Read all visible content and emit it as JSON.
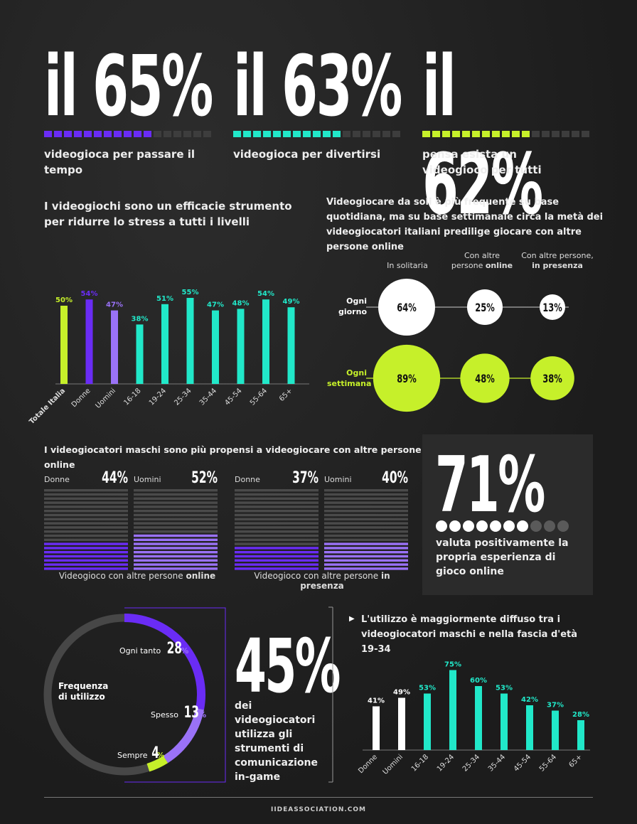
{
  "top_stats": [
    {
      "value": "il 65%",
      "caption": "videogioca per passare il tempo",
      "filled": 11,
      "color": "#6a2cf5"
    },
    {
      "value": "il 63%",
      "caption": "videogioca per divertirsi",
      "filled": 11,
      "color": "#21e8c9"
    },
    {
      "value": "il 62%",
      "caption": "pensa esista un videogioco per tutti",
      "filled": 11,
      "color": "#c6f02a"
    }
  ],
  "stress": {
    "heading": "I videogiochi sono un efficacie strumento per ridurre lo stress a tutti i livelli"
  },
  "solo": {
    "heading": "Videogiocare da soli è più frequente su base quotidiana, ma su base settimanale circa la metà dei videogiocatori italiani predilige giocare con altre persone online",
    "col1": "In solitaria",
    "col2a": "Con altre",
    "col2b": "persone ",
    "col2c": "online",
    "col3a": "Con altre persone,",
    "col3b": "in presenza",
    "row1": "Ogni giorno",
    "row2": "Ogni settimana"
  },
  "males": {
    "heading": "I videogiocatori maschi sono più propensi a videogiocare con altre persone online",
    "online_caption_a": "Videogioco con altre persone ",
    "online_caption_b": "online",
    "presence_caption_a": "Videogioco con altre persone ",
    "presence_caption_b": "in presenza",
    "donne": "Donne",
    "uomini": "Uomini"
  },
  "panel71": {
    "value": "71%",
    "caption": "valuta positivamente la propria esperienza di gioco online"
  },
  "freq": {
    "label": "Frequenza di utilizzo",
    "items": [
      {
        "name": "Ogni tanto",
        "value": "28",
        "pct": "%"
      },
      {
        "name": "Spesso",
        "value": "13",
        "pct": "%"
      },
      {
        "name": "Sempre",
        "value": "4",
        "pct": "%"
      }
    ]
  },
  "comm": {
    "value": "45%",
    "caption": "dei videogiocatori utilizza gli strumenti di comunicazione in-game"
  },
  "usage": {
    "heading": "L'utilizzo è maggiormente diffuso tra i videogiocatori maschi e nella fascia d'età 19-34"
  },
  "footer": "IIDEASSOCIATION.COM",
  "chart_data": [
    {
      "type": "bar",
      "categories": [
        "Totale Italia",
        "Donne",
        "Uomini",
        "16-18",
        "19-24",
        "25-34",
        "35-44",
        "45-54",
        "55-64",
        "65+"
      ],
      "values": [
        50,
        54,
        47,
        38,
        51,
        55,
        47,
        48,
        54,
        49
      ],
      "labels": [
        "50%",
        "54%",
        "47%",
        "38%",
        "51%",
        "55%",
        "47%",
        "48%",
        "54%",
        "49%"
      ],
      "colors": [
        "#c6f02a",
        "#6a2cf5",
        "#9a72f7",
        "#21e8c9",
        "#21e8c9",
        "#21e8c9",
        "#21e8c9",
        "#21e8c9",
        "#21e8c9",
        "#21e8c9"
      ]
    },
    {
      "type": "bubble",
      "columns": [
        "In solitaria",
        "Con altre persone online",
        "Con altre persone, in presenza"
      ],
      "rows": [
        "Ogni giorno",
        "Ogni settimana"
      ],
      "values": [
        [
          64,
          25,
          13
        ],
        [
          89,
          48,
          38
        ]
      ],
      "labels": [
        [
          "64%",
          "25%",
          "13%"
        ],
        [
          "89%",
          "48%",
          "38%"
        ]
      ]
    },
    {
      "type": "bar",
      "title": "Videogioco con altre persone online",
      "categories": [
        "Donne",
        "Uomini"
      ],
      "values": [
        44,
        52
      ],
      "labels": [
        "44%",
        "52%"
      ]
    },
    {
      "type": "bar",
      "title": "Videogioco con altre persone in presenza",
      "categories": [
        "Donne",
        "Uomini"
      ],
      "values": [
        37,
        40
      ],
      "labels": [
        "37%",
        "40%"
      ]
    },
    {
      "type": "pie",
      "title": "Frequenza di utilizzo",
      "categories": [
        "Ogni tanto",
        "Spesso",
        "Sempre"
      ],
      "values": [
        28,
        13,
        4
      ],
      "colors": [
        "#6a2cf5",
        "#9a72f7",
        "#c6f02a"
      ]
    },
    {
      "type": "bar",
      "categories": [
        "Donne",
        "Uomini",
        "16-18",
        "19-24",
        "25-34",
        "35-44",
        "45-54",
        "55-64",
        "65+"
      ],
      "values": [
        41,
        49,
        53,
        75,
        60,
        53,
        42,
        37,
        28
      ],
      "labels": [
        "41%",
        "49%",
        "53%",
        "75%",
        "60%",
        "53%",
        "42%",
        "37%",
        "28%"
      ],
      "colors": [
        "#ffffff",
        "#ffffff",
        "#21e8c9",
        "#21e8c9",
        "#21e8c9",
        "#21e8c9",
        "#21e8c9",
        "#21e8c9",
        "#21e8c9"
      ]
    }
  ],
  "dots71": {
    "filled": 7,
    "total": 10
  }
}
